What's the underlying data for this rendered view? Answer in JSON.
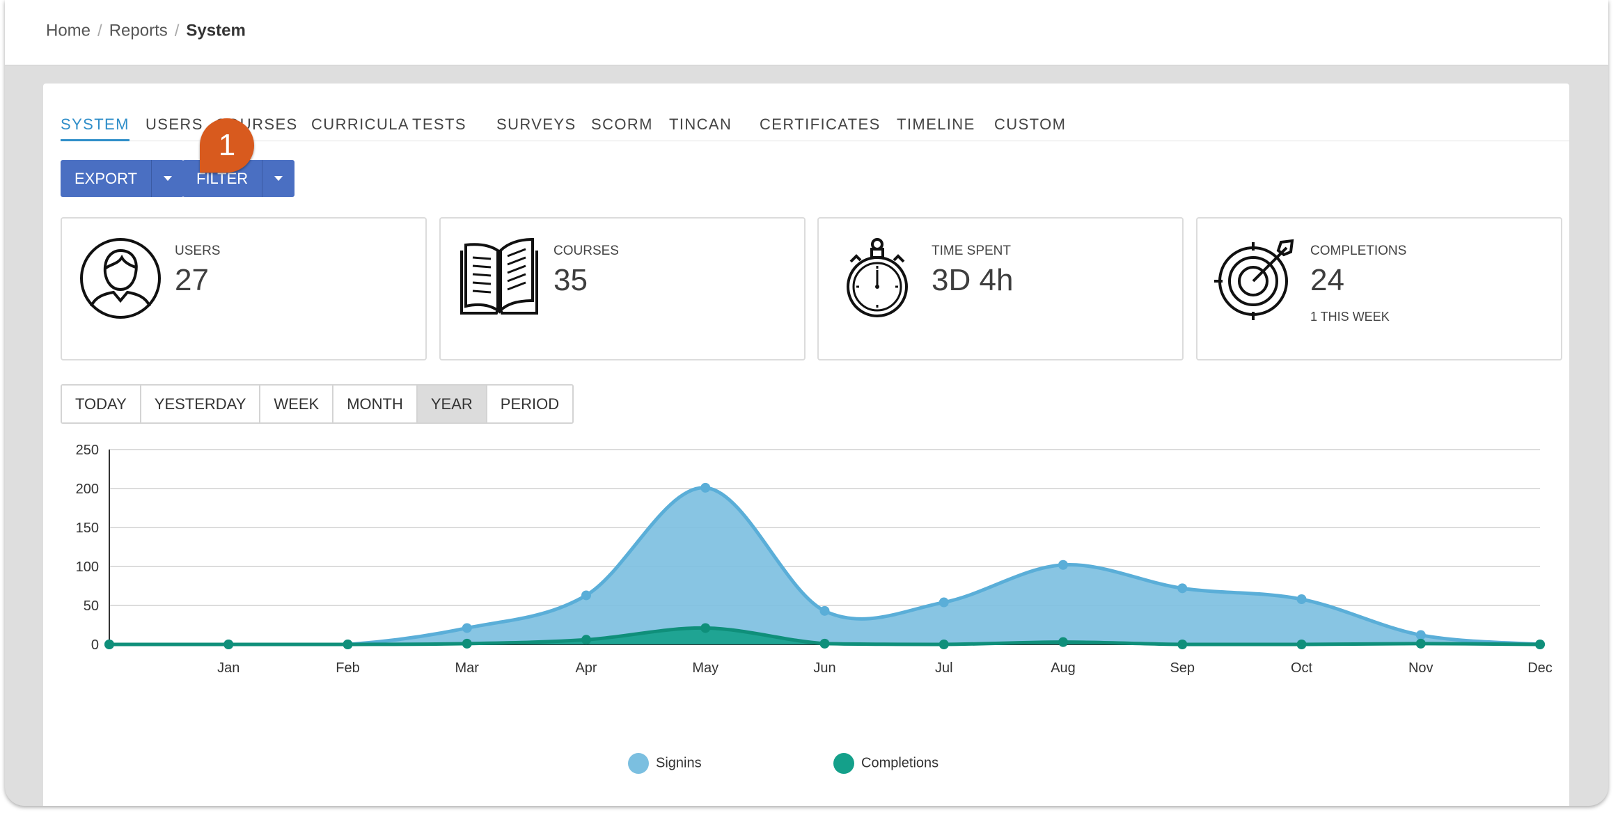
{
  "breadcrumb": {
    "home": "Home",
    "reports": "Reports",
    "current": "System"
  },
  "tabs": [
    {
      "label": "SYSTEM"
    },
    {
      "label": "USERS"
    },
    {
      "label": "COURSES"
    },
    {
      "label": "CURRICULA"
    },
    {
      "label": "TESTS"
    },
    {
      "label": "SURVEYS"
    },
    {
      "label": "SCORM"
    },
    {
      "label": "TINCAN"
    },
    {
      "label": "CERTIFICATES"
    },
    {
      "label": "TIMELINE"
    },
    {
      "label": "CUSTOM"
    }
  ],
  "toolbar": {
    "export_label": "EXPORT",
    "filter_label": "FILTER"
  },
  "marker": {
    "number": "1"
  },
  "stats": {
    "users": {
      "label": "USERS",
      "value": "27",
      "icon": "user-icon"
    },
    "courses": {
      "label": "COURSES",
      "value": "35",
      "icon": "book-icon"
    },
    "time": {
      "label": "TIME SPENT",
      "value": "3D 4h",
      "icon": "stopwatch-icon"
    },
    "completions": {
      "label": "COMPLETIONS",
      "value": "24",
      "sub": "1 THIS WEEK",
      "icon": "target-icon"
    }
  },
  "periods": [
    {
      "label": "TODAY"
    },
    {
      "label": "YESTERDAY"
    },
    {
      "label": "WEEK"
    },
    {
      "label": "MONTH"
    },
    {
      "label": "YEAR"
    },
    {
      "label": "PERIOD"
    }
  ],
  "colors": {
    "accent": "#2f8ec9",
    "button": "#4a6fc2",
    "marker": "#d85a1e",
    "signins": "#7bbfe0",
    "completions": "#14a08a"
  },
  "chart_data": {
    "type": "area",
    "x": [
      "",
      "Jan",
      "Feb",
      "Mar",
      "Apr",
      "May",
      "Jun",
      "Jul",
      "Aug",
      "Sep",
      "Oct",
      "Nov",
      "Dec"
    ],
    "ylim": [
      0,
      250
    ],
    "yticks": [
      0,
      50,
      100,
      150,
      200,
      250
    ],
    "grid": true,
    "legend_position": "bottom",
    "series": [
      {
        "name": "Signins",
        "values": [
          0,
          0,
          0,
          21,
          63,
          201,
          43,
          54,
          102,
          72,
          58,
          12,
          0
        ]
      },
      {
        "name": "Completions",
        "values": [
          0,
          0,
          0,
          1,
          6,
          21,
          1,
          0,
          3,
          0,
          0,
          1,
          0
        ]
      }
    ]
  }
}
